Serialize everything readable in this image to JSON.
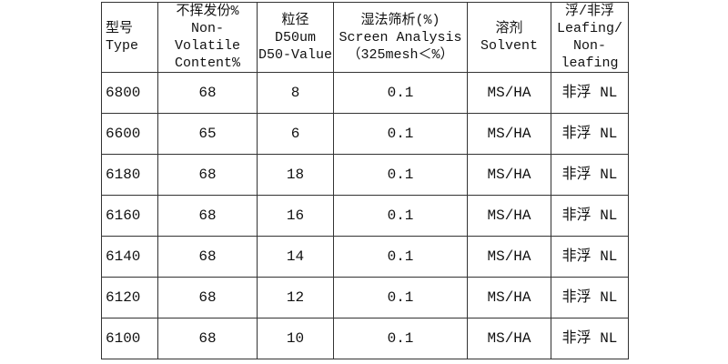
{
  "headers": [
    {
      "lines": [
        "型号",
        "Type"
      ]
    },
    {
      "lines": [
        "不挥发份%",
        "Non-Volatile",
        "Content%"
      ]
    },
    {
      "lines": [
        "粒径 D50um",
        "D50-Value"
      ]
    },
    {
      "lines": [
        "湿法筛析(%)",
        "Screen Analysis",
        "（325mesh＜%）"
      ]
    },
    {
      "lines": [
        "溶剂",
        "Solvent"
      ]
    },
    {
      "lines": [
        "浮/非浮",
        "Leafing/",
        "Non-leafing"
      ]
    }
  ],
  "rows": [
    [
      "6800",
      "68",
      "8",
      "0.1",
      "MS/HA",
      "非浮 NL"
    ],
    [
      "6600",
      "65",
      "6",
      "0.1",
      "MS/HA",
      "非浮 NL"
    ],
    [
      "6180",
      "68",
      "18",
      "0.1",
      "MS/HA",
      "非浮 NL"
    ],
    [
      "6160",
      "68",
      "16",
      "0.1",
      "MS/HA",
      "非浮 NL"
    ],
    [
      "6140",
      "68",
      "14",
      "0.1",
      "MS/HA",
      "非浮 NL"
    ],
    [
      "6120",
      "68",
      "12",
      "0.1",
      "MS/HA",
      "非浮 NL"
    ],
    [
      "6100",
      "68",
      "10",
      "0.1",
      "MS/HA",
      "非浮 NL"
    ]
  ]
}
